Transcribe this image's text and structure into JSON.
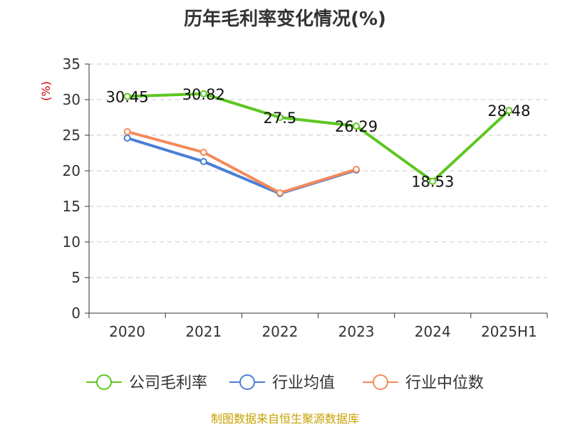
{
  "chart_data": {
    "type": "line",
    "title": "历年毛利率变化情况(%)",
    "ylabel": "(%)",
    "categories": [
      "2020",
      "2021",
      "2022",
      "2023",
      "2024",
      "2025H1"
    ],
    "yticks": [
      "0",
      "5",
      "10",
      "15",
      "20",
      "25",
      "30",
      "35"
    ],
    "ylim": [
      0,
      35
    ],
    "grid": "horizontal dashed",
    "legend_position": "bottom",
    "series": [
      {
        "name": "公司毛利率",
        "color": "#5dc621",
        "values": [
          30.45,
          30.82,
          27.5,
          26.29,
          18.53,
          28.48
        ],
        "labels": [
          "30.45",
          "30.82",
          "27.5",
          "26.29",
          "18.53",
          "28.48"
        ]
      },
      {
        "name": "行业均值",
        "color": "#4a7fd6",
        "values": [
          24.6,
          21.3,
          16.8,
          20.1,
          null,
          null
        ]
      },
      {
        "name": "行业中位数",
        "color": "#f38a5a",
        "values": [
          25.5,
          22.6,
          16.9,
          20.2,
          null,
          null
        ]
      }
    ]
  },
  "source": "制图数据来自恒生聚源数据库"
}
